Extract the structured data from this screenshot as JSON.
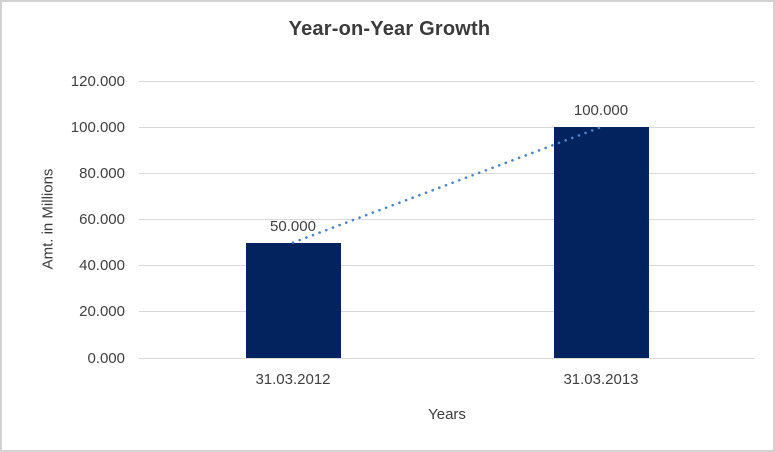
{
  "chart_data": {
    "type": "bar",
    "title": "Year-on-Year Growth",
    "xlabel": "Years",
    "ylabel": "Amt. in Millions",
    "categories": [
      "31.03.2012",
      "31.03.2013"
    ],
    "values": [
      50,
      100
    ],
    "value_labels": [
      "50.000",
      "100.000"
    ],
    "y_ticks": [
      {
        "value": 0,
        "label": "0.000"
      },
      {
        "value": 20,
        "label": "20.000"
      },
      {
        "value": 40,
        "label": "40.000"
      },
      {
        "value": 60,
        "label": "60.000"
      },
      {
        "value": 80,
        "label": "80.000"
      },
      {
        "value": 100,
        "label": "100.000"
      },
      {
        "value": 120,
        "label": "120.000"
      }
    ],
    "ylim": [
      0,
      120
    ],
    "grid": true,
    "legend": false,
    "trendline": {
      "type": "linear",
      "style": "dotted",
      "from_value": 50,
      "to_value": 100
    },
    "colors": {
      "bar": "#02235e",
      "trendline": "#4a85c9",
      "gridline": "#d9d9d9",
      "tick_text": "#404040",
      "title_text": "#3b3b3b",
      "background": "#ffffff",
      "frame_border": "#d2d2d2"
    }
  }
}
